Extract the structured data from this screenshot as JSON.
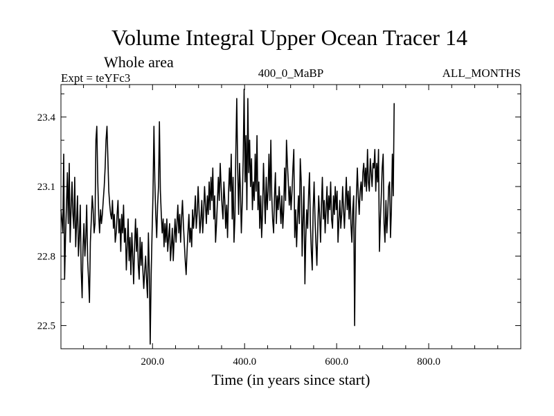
{
  "chart_data": {
    "type": "line",
    "title": "Volume Integral Upper Ocean Tracer 14",
    "subtitle": "Whole area",
    "annotations": {
      "left": "Expt = teYFc3",
      "center": "400_0_MaBP",
      "right": "ALL_MONTHS"
    },
    "xlabel": "Time (in years since start)",
    "ylabel": "",
    "xlim": [
      1,
      1000
    ],
    "ylim": [
      22.4,
      23.54
    ],
    "x_major_ticks": [
      200,
      400,
      600,
      800
    ],
    "x_tick_labels": [
      "200.0",
      "400.0",
      "600.0",
      "800.0"
    ],
    "x_minor_step": 50,
    "y_major_ticks": [
      22.5,
      22.8,
      23.1,
      23.4
    ],
    "y_tick_labels": [
      "22.5",
      "22.8",
      "23.1",
      "23.4"
    ],
    "y_minor_step": 0.1,
    "grid": false,
    "series": [
      {
        "name": "Tracer 14",
        "x_start": 1,
        "x_step": 2,
        "values": [
          23.0,
          22.96,
          22.9,
          23.24,
          22.7,
          22.88,
          23.02,
          23.16,
          22.94,
          23.2,
          22.86,
          23.0,
          23.12,
          22.98,
          22.92,
          23.14,
          22.84,
          22.94,
          23.06,
          22.8,
          22.88,
          23.02,
          22.74,
          22.62,
          22.84,
          22.94,
          22.8,
          22.88,
          23.02,
          22.78,
          22.7,
          22.6,
          22.86,
          22.96,
          23.06,
          23.0,
          22.9,
          22.94,
          23.3,
          23.36,
          23.12,
          22.98,
          22.9,
          23.0,
          22.94,
          22.98,
          23.04,
          23.1,
          23.18,
          23.3,
          23.36,
          23.22,
          23.08,
          23.02,
          22.98,
          22.96,
          23.04,
          22.92,
          22.98,
          22.86,
          22.9,
          22.98,
          23.04,
          22.9,
          22.96,
          22.82,
          22.98,
          22.9,
          23.02,
          22.86,
          22.92,
          22.74,
          22.84,
          22.96,
          22.78,
          22.88,
          22.72,
          22.9,
          22.8,
          22.68,
          22.84,
          22.96,
          22.82,
          22.92,
          22.76,
          22.7,
          22.88,
          22.76,
          22.86,
          22.74,
          22.66,
          22.74,
          22.8,
          22.7,
          22.62,
          22.9,
          22.74,
          22.42,
          22.72,
          22.9,
          23.06,
          23.36,
          23.12,
          22.98,
          22.88,
          23.02,
          23.1,
          23.38,
          23.08,
          22.98,
          22.9,
          22.96,
          22.84,
          22.94,
          22.86,
          22.96,
          22.82,
          22.88,
          22.94,
          22.78,
          22.84,
          22.92,
          22.78,
          22.88,
          22.96,
          22.86,
          22.94,
          23.02,
          22.9,
          22.98,
          22.86,
          22.96,
          23.04,
          22.94,
          22.86,
          22.78,
          22.72,
          22.82,
          22.9,
          22.98,
          22.86,
          22.92,
          22.84,
          23.0,
          22.92,
          22.98,
          23.06,
          22.92,
          22.98,
          23.1,
          23.0,
          22.9,
          22.96,
          23.04,
          22.9,
          22.98,
          23.1,
          23.02,
          22.94,
          23.06,
          22.98,
          23.12,
          23.0,
          23.14,
          23.04,
          23.18,
          22.96,
          23.06,
          22.86,
          22.94,
          23.04,
          23.14,
          23.04,
          23.2,
          23.1,
          23.02,
          22.96,
          23.12,
          23.04,
          22.92,
          23.02,
          22.88,
          23.06,
          23.18,
          23.08,
          23.24,
          22.96,
          23.14,
          22.86,
          22.96,
          23.26,
          23.48,
          23.18,
          22.98,
          23.2,
          23.08,
          22.9,
          23.04,
          23.22,
          23.52,
          23.12,
          23.32,
          23.0,
          23.48,
          23.16,
          23.3,
          23.1,
          23.22,
          23.0,
          23.12,
          23.04,
          23.24,
          23.08,
          23.32,
          23.0,
          23.12,
          22.92,
          23.06,
          22.88,
          22.98,
          23.2,
          23.06,
          22.94,
          23.14,
          23.0,
          23.08,
          23.24,
          23.04,
          23.3,
          23.06,
          22.96,
          22.9,
          23.06,
          23.16,
          22.94,
          23.06,
          23.0,
          23.1,
          23.02,
          22.94,
          23.06,
          22.92,
          23.0,
          23.18,
          23.04,
          23.3,
          23.2,
          23.12,
          23.02,
          23.1,
          23.0,
          23.08,
          23.18,
          23.26,
          22.88,
          23.0,
          22.84,
          22.96,
          23.06,
          22.94,
          23.22,
          23.12,
          22.8,
          22.96,
          23.1,
          22.68,
          22.88,
          23.0,
          22.92,
          23.06,
          23.16,
          22.94,
          22.82,
          22.74,
          23.0,
          23.12,
          22.96,
          22.86,
          22.76,
          22.92,
          23.06,
          22.98,
          22.86,
          23.02,
          23.14,
          22.96,
          23.04,
          22.9,
          23.0,
          23.1,
          22.94,
          23.06,
          23.0,
          23.12,
          22.96,
          22.92,
          23.06,
          22.98,
          23.1,
          23.0,
          23.08,
          22.86,
          22.96,
          23.04,
          22.92,
          22.98,
          23.1,
          23.0,
          22.92,
          23.04,
          23.14,
          23.0,
          23.08,
          22.96,
          23.1,
          22.94,
          22.86,
          23.0,
          23.06,
          22.5,
          22.92,
          23.06,
          23.18,
          23.06,
          22.98,
          23.08,
          23.12,
          23.04,
          23.16,
          23.2,
          23.1,
          23.18,
          23.08,
          23.26,
          23.12,
          23.08,
          23.22,
          23.16,
          23.1,
          23.2,
          23.18,
          23.26,
          23.08,
          23.2,
          23.12,
          23.26,
          22.82,
          22.96,
          23.06,
          23.18,
          23.24,
          22.94,
          22.86,
          23.04,
          22.9,
          22.98,
          23.1,
          23.12,
          22.88,
          23.0,
          23.24,
          23.06,
          23.46
        ]
      }
    ]
  }
}
